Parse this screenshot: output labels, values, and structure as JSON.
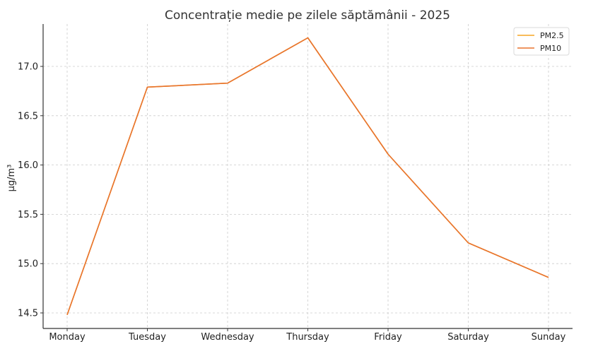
{
  "chart_data": {
    "type": "line",
    "title": "Concentrație medie pe zilele săptămânii - 2025",
    "xlabel": "",
    "ylabel": "µg/m³",
    "categories": [
      "Monday",
      "Tuesday",
      "Wednesday",
      "Thursday",
      "Friday",
      "Saturday",
      "Sunday"
    ],
    "ylim": [
      14.4,
      17.4
    ],
    "yticks": [
      "14.5",
      "15.0",
      "15.5",
      "16.0",
      "16.5",
      "17.0"
    ],
    "grid": true,
    "legend_position": "top-right",
    "series": [
      {
        "name": "PM2.5",
        "color": "#f5a623",
        "values": [
          14.48,
          16.79,
          16.83,
          17.29,
          16.11,
          15.21,
          14.86
        ]
      },
      {
        "name": "PM10",
        "color": "#e8742f",
        "values": [
          14.48,
          16.79,
          16.83,
          17.29,
          16.11,
          15.21,
          14.86
        ]
      }
    ]
  }
}
